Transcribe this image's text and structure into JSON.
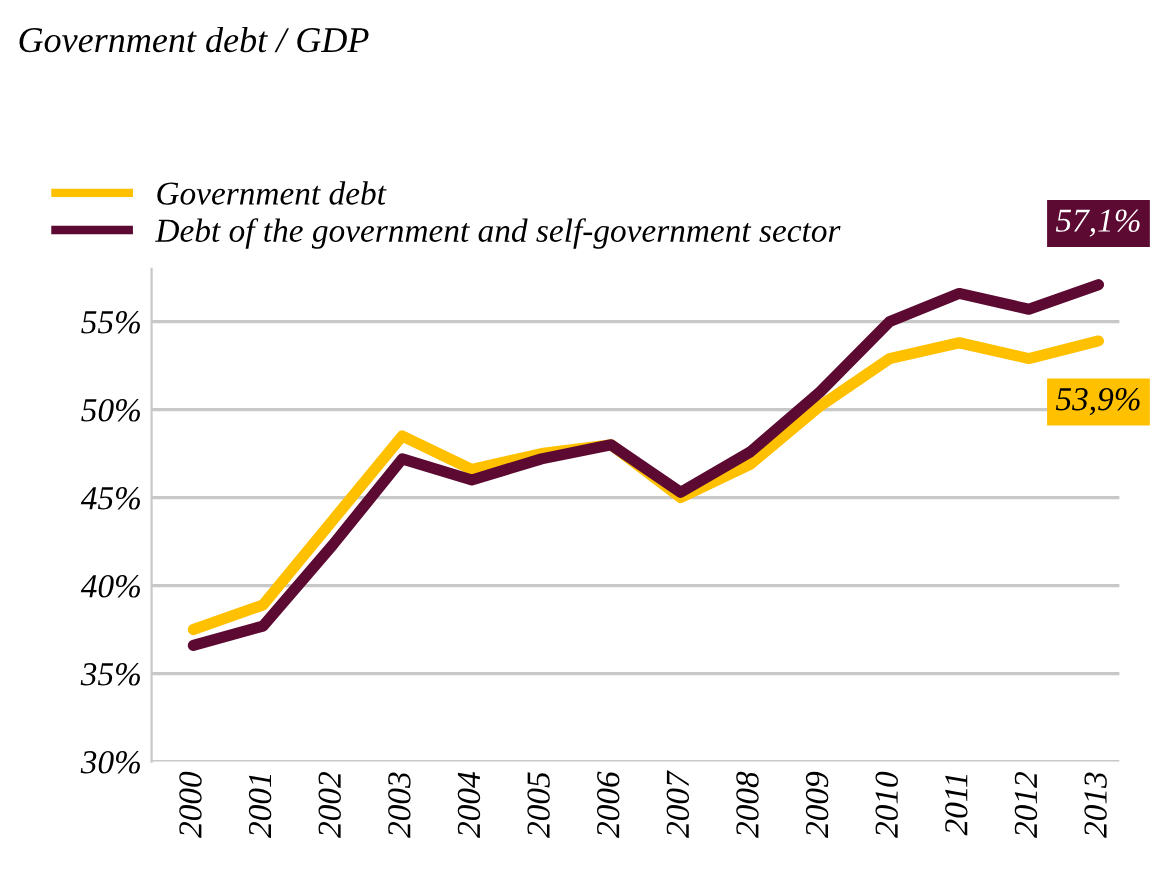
{
  "chart_data": {
    "type": "line",
    "title": "Government debt / GDP",
    "categories": [
      "2000",
      "2001",
      "2002",
      "2003",
      "2004",
      "2005",
      "2006",
      "2007",
      "2008",
      "2009",
      "2010",
      "2011",
      "2012",
      "2013"
    ],
    "series": [
      {
        "name": "Government debt",
        "color": "#ffc000",
        "values": [
          37.5,
          38.9,
          43.7,
          48.5,
          46.6,
          47.5,
          48.0,
          45.0,
          46.9,
          50.2,
          52.9,
          53.8,
          52.9,
          53.9
        ],
        "value_labels": [
          null,
          null,
          null,
          null,
          null,
          null,
          null,
          null,
          null,
          null,
          null,
          null,
          null,
          "53,9%"
        ]
      },
      {
        "name": "Debt of the government and self-government sector",
        "color": "#5c0a32",
        "values": [
          36.6,
          37.7,
          42.3,
          47.2,
          46.0,
          47.2,
          48.0,
          45.3,
          47.6,
          51.0,
          55.0,
          56.6,
          55.7,
          57.1
        ],
        "value_labels": [
          null,
          null,
          null,
          null,
          null,
          null,
          null,
          null,
          null,
          null,
          null,
          null,
          null,
          "57,1%"
        ]
      }
    ],
    "ylim": [
      30,
      58
    ],
    "yticks": [
      {
        "value": 30,
        "label": "30%"
      },
      {
        "value": 35,
        "label": "35%"
      },
      {
        "value": 40,
        "label": "40%"
      },
      {
        "value": 45,
        "label": "45%"
      },
      {
        "value": 50,
        "label": "50%"
      },
      {
        "value": 55,
        "label": "55%"
      }
    ],
    "grid": "y",
    "legend": "top left",
    "marker": "none",
    "line_style": "solid"
  }
}
